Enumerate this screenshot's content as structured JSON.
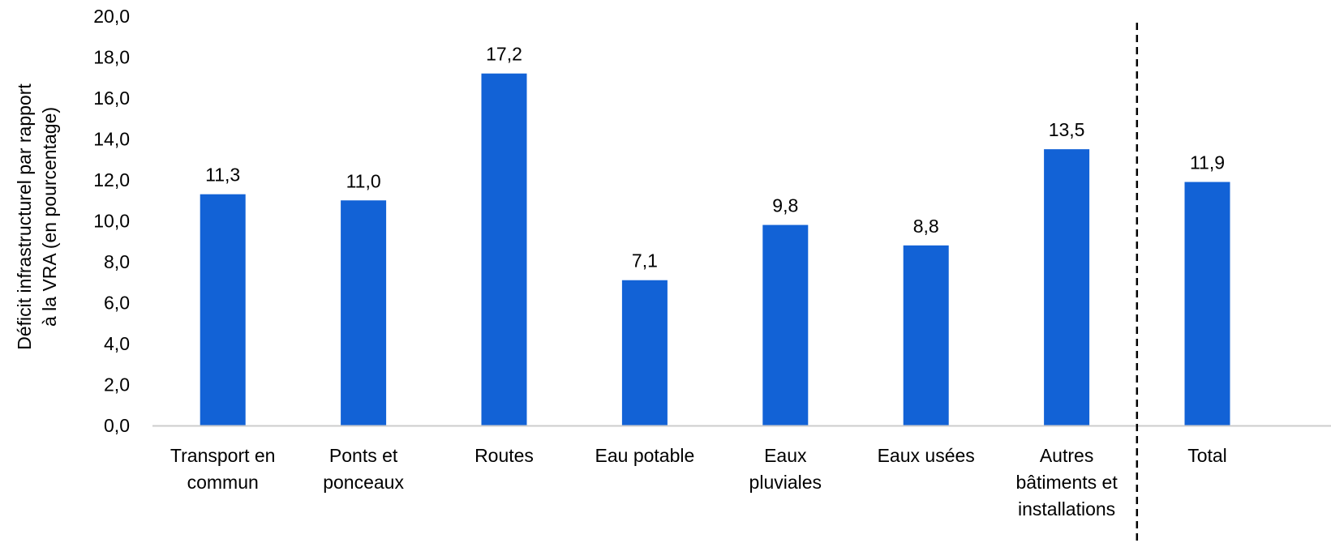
{
  "chart_data": {
    "type": "bar",
    "title": "",
    "ylabel_lines": [
      "Déficit infrastructurel par rapport",
      "à la VRA (en pourcentage)"
    ],
    "xlabel": "",
    "ylim": [
      0,
      20
    ],
    "ytick_step": 2,
    "yticks": [
      "0,0",
      "2,0",
      "4,0",
      "6,0",
      "8,0",
      "10,0",
      "12,0",
      "14,0",
      "16,0",
      "18,0",
      "20,0"
    ],
    "categories": [
      [
        "Transport en",
        "commun"
      ],
      [
        "Ponts et",
        "ponceaux"
      ],
      [
        "Routes"
      ],
      [
        "Eau potable"
      ],
      [
        "Eaux",
        "pluviales"
      ],
      [
        "Eaux usées"
      ],
      [
        "Autres",
        "bâtiments et",
        "installations"
      ],
      [
        "Total"
      ]
    ],
    "values": [
      11.3,
      11.0,
      17.2,
      7.1,
      9.8,
      8.8,
      13.5,
      11.9
    ],
    "value_labels": [
      "11,3",
      "11,0",
      "17,2",
      "7,1",
      "9,8",
      "8,8",
      "13,5",
      "11,9"
    ],
    "bar_color": "#1262d6",
    "axis_color": "#cccccc",
    "separator": "dashed line between the last two categories",
    "grid": false,
    "legend": "none"
  }
}
